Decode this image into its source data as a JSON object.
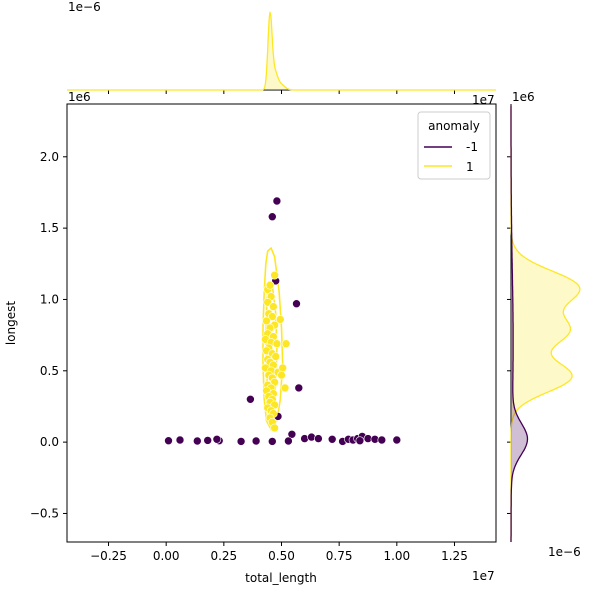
{
  "chart_data": {
    "type": "scatter",
    "xlabel": "total_length",
    "ylabel": "longest",
    "x_offset_label": "1e7",
    "y_offset_label": "1e6",
    "top_marginal_offset_label": "1e−6",
    "top_marginal_right_offset_label": "1e7",
    "right_marginal_offset_label": "1e6",
    "right_marginal_bottom_offset_label": "1e−6",
    "xlim": [
      -4300000,
      14300000
    ],
    "ylim": [
      -700000,
      2370000
    ],
    "x_ticks": [
      {
        "value": -2500000,
        "label": "−0.25"
      },
      {
        "value": 0,
        "label": "0.00"
      },
      {
        "value": 2500000,
        "label": "0.25"
      },
      {
        "value": 5000000,
        "label": "0.50"
      },
      {
        "value": 7500000,
        "label": "0.75"
      },
      {
        "value": 10000000,
        "label": "1.00"
      },
      {
        "value": 12500000,
        "label": "1.25"
      }
    ],
    "y_ticks": [
      {
        "value": -500000,
        "label": "−0.5"
      },
      {
        "value": 0,
        "label": "0.0"
      },
      {
        "value": 500000,
        "label": "0.5"
      },
      {
        "value": 1000000,
        "label": "1.0"
      },
      {
        "value": 1500000,
        "label": "1.5"
      },
      {
        "value": 2000000,
        "label": "2.0"
      }
    ],
    "legend": {
      "title": "anomaly",
      "placement": "top-right",
      "entries": [
        {
          "label": "-1",
          "color": "#440154"
        },
        {
          "label": "1",
          "color": "#fde725"
        }
      ]
    },
    "series": [
      {
        "name": "-1",
        "color": "#440154",
        "points": [
          [
            4800000,
            1690000
          ],
          [
            4600000,
            1580000
          ],
          [
            4750000,
            1130000
          ],
          [
            5650000,
            970000
          ],
          [
            5750000,
            380000
          ],
          [
            3650000,
            300000
          ],
          [
            4850000,
            180000
          ],
          [
            5450000,
            55000
          ],
          [
            100000,
            10000
          ],
          [
            600000,
            15000
          ],
          [
            1350000,
            8000
          ],
          [
            1800000,
            12000
          ],
          [
            2300000,
            10000
          ],
          [
            3250000,
            5000
          ],
          [
            3900000,
            8000
          ],
          [
            4600000,
            5000
          ],
          [
            5300000,
            8000
          ],
          [
            6000000,
            25000
          ],
          [
            6300000,
            35000
          ],
          [
            6600000,
            25000
          ],
          [
            7200000,
            20000
          ],
          [
            7650000,
            5000
          ],
          [
            7900000,
            20000
          ],
          [
            8100000,
            15000
          ],
          [
            8300000,
            25000
          ],
          [
            8500000,
            40000
          ],
          [
            8750000,
            25000
          ],
          [
            9050000,
            20000
          ],
          [
            9350000,
            15000
          ],
          [
            10000000,
            15000
          ],
          [
            8400000,
            10000
          ],
          [
            2200000,
            20000
          ]
        ]
      },
      {
        "name": "1",
        "color": "#fde725",
        "points": [
          [
            4400000,
            1070000
          ],
          [
            4550000,
            1020000
          ],
          [
            4400000,
            980000
          ],
          [
            4650000,
            950000
          ],
          [
            4450000,
            900000
          ],
          [
            4600000,
            880000
          ],
          [
            4350000,
            850000
          ],
          [
            4700000,
            820000
          ],
          [
            4500000,
            800000
          ],
          [
            4400000,
            760000
          ],
          [
            4650000,
            740000
          ],
          [
            4300000,
            720000
          ],
          [
            4550000,
            700000
          ],
          [
            4800000,
            690000
          ],
          [
            4450000,
            660000
          ],
          [
            4350000,
            640000
          ],
          [
            4600000,
            620000
          ],
          [
            4750000,
            600000
          ],
          [
            4400000,
            580000
          ],
          [
            4500000,
            560000
          ],
          [
            4650000,
            540000
          ],
          [
            4300000,
            520000
          ],
          [
            4550000,
            500000
          ],
          [
            4850000,
            490000
          ],
          [
            4450000,
            470000
          ],
          [
            4600000,
            450000
          ],
          [
            4700000,
            420000
          ],
          [
            4400000,
            400000
          ],
          [
            4550000,
            380000
          ],
          [
            4350000,
            360000
          ],
          [
            4650000,
            340000
          ],
          [
            4450000,
            320000
          ],
          [
            4600000,
            300000
          ],
          [
            4500000,
            280000
          ],
          [
            4700000,
            260000
          ],
          [
            4400000,
            240000
          ],
          [
            4550000,
            220000
          ],
          [
            4650000,
            200000
          ],
          [
            4500000,
            170000
          ],
          [
            4600000,
            140000
          ],
          [
            4700000,
            100000
          ],
          [
            5200000,
            690000
          ],
          [
            5050000,
            520000
          ],
          [
            5150000,
            380000
          ],
          [
            4950000,
            860000
          ],
          [
            5000000,
            470000
          ],
          [
            4500000,
            1100000
          ],
          [
            4700000,
            1170000
          ]
        ]
      }
    ],
    "kde_contour_1": {
      "outline": [
        [
          4400000,
          1340000
        ],
        [
          4550000,
          1360000
        ],
        [
          4700000,
          1300000
        ],
        [
          4900000,
          1050000
        ],
        [
          5000000,
          800000
        ],
        [
          5050000,
          550000
        ],
        [
          4950000,
          300000
        ],
        [
          4800000,
          150000
        ],
        [
          4550000,
          90000
        ],
        [
          4350000,
          150000
        ],
        [
          4250000,
          300000
        ],
        [
          4200000,
          550000
        ],
        [
          4200000,
          800000
        ],
        [
          4250000,
          1050000
        ],
        [
          4320000,
          1250000
        ]
      ],
      "inner": [
        [
          4450000,
          1120000
        ],
        [
          4600000,
          1100000
        ],
        [
          4750000,
          900000
        ],
        [
          4800000,
          650000
        ],
        [
          4750000,
          400000
        ],
        [
          4600000,
          260000
        ],
        [
          4420000,
          300000
        ],
        [
          4350000,
          520000
        ],
        [
          4330000,
          780000
        ],
        [
          4370000,
          1000000
        ]
      ]
    },
    "top_marginal": {
      "series": [
        {
          "name": "1",
          "color": "#fde725",
          "peaks": [
            {
              "center": 4500000,
              "width": 90000,
              "height": 1.0
            },
            {
              "center": 4700000,
              "width": 120000,
              "height": 0.22
            },
            {
              "center": 4950000,
              "width": 180000,
              "height": 0.08
            }
          ]
        }
      ]
    },
    "right_marginal": {
      "series": [
        {
          "name": "1",
          "color": "#fde725",
          "peaks": [
            {
              "center": 1080000,
              "width": 120000,
              "height": 0.95
            },
            {
              "center": 780000,
              "width": 110000,
              "height": 0.78
            },
            {
              "center": 460000,
              "width": 110000,
              "height": 0.85
            }
          ]
        },
        {
          "name": "-1",
          "color": "#440154",
          "peaks": [
            {
              "center": 20000,
              "width": 110000,
              "height": 0.22
            },
            {
              "center": 700000,
              "width": 500000,
              "height": 0.03
            }
          ]
        }
      ]
    }
  }
}
